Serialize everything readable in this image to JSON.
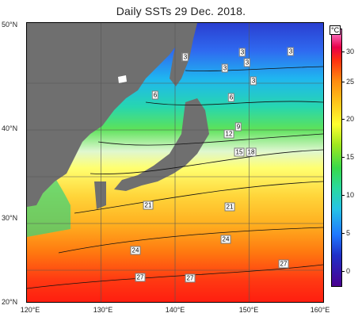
{
  "title": "Daily SSTs 29 Dec. 2018.",
  "lat_labels": [
    "50°N",
    "40°N",
    "30°N",
    "20°N"
  ],
  "lon_labels": [
    "120°E",
    "130°E",
    "140°E",
    "150°E",
    "160°E"
  ],
  "colorbar": {
    "unit": "°C",
    "ticks": [
      "30",
      "25",
      "20",
      "15",
      "10",
      "5",
      "0"
    ],
    "range": [
      -2,
      32
    ]
  },
  "contour_labels": [
    "3",
    "3",
    "3",
    "3",
    "3",
    "3",
    "6",
    "6",
    "9",
    "12",
    "15",
    "18",
    "21",
    "21",
    "24",
    "24",
    "27",
    "27",
    "27"
  ],
  "colors": {
    "land": "#6f6f6f",
    "cold": "#1f3fd0",
    "warm": "#ff2a10"
  }
}
